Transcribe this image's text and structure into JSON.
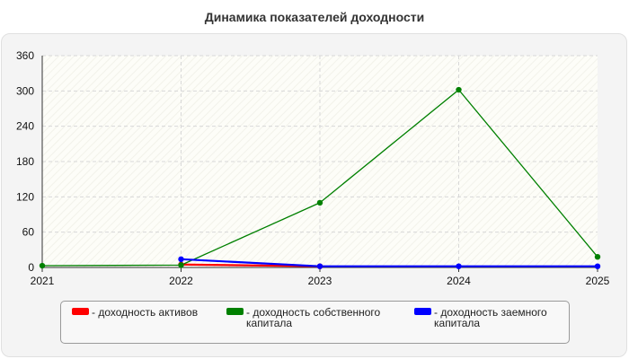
{
  "title": "Динамика показателей доходности",
  "chart_data": {
    "type": "line",
    "title": "Динамика показателей доходности",
    "x": [
      "2021",
      "2022",
      "2023",
      "2024",
      "2025"
    ],
    "ylim": [
      0,
      360
    ],
    "yticks": [
      0,
      60,
      120,
      180,
      240,
      300,
      360
    ],
    "grid": true,
    "legend_position": "bottom",
    "series": [
      {
        "name": "- доходность активов",
        "color": "#ff0000",
        "values": [
          null,
          5,
          2,
          null,
          null
        ]
      },
      {
        "name": "- доходность собственного капитала",
        "color": "#008000",
        "values": [
          3,
          4,
          110,
          302,
          18
        ]
      },
      {
        "name": "- доходность заемного капитала",
        "color": "#0000ff",
        "values": [
          null,
          14,
          2,
          2,
          2
        ]
      }
    ]
  }
}
